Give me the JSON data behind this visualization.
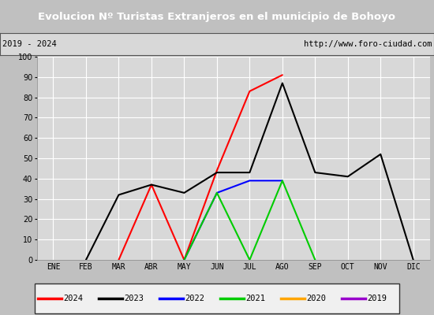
{
  "title": "Evolucion Nº Turistas Extranjeros en el municipio de Bohoyo",
  "subtitle_left": "2019 - 2024",
  "subtitle_right": "http://www.foro-ciudad.com",
  "title_bg_color": "#4f86c6",
  "subtitle_bg_color": "#d8d8d8",
  "months": [
    "ENE",
    "FEB",
    "MAR",
    "ABR",
    "MAY",
    "JUN",
    "JUL",
    "AGO",
    "SEP",
    "OCT",
    "NOV",
    "DIC"
  ],
  "series": {
    "2024": {
      "color": "#ff0000",
      "values": [
        null,
        null,
        0,
        37,
        0,
        44,
        83,
        91,
        null,
        null,
        null,
        null
      ]
    },
    "2023": {
      "color": "#000000",
      "values": [
        null,
        0,
        32,
        37,
        33,
        43,
        43,
        87,
        43,
        41,
        52,
        0
      ]
    },
    "2022": {
      "color": "#0000ff",
      "values": [
        null,
        null,
        null,
        null,
        0,
        33,
        39,
        39,
        null,
        null,
        null,
        null
      ]
    },
    "2021": {
      "color": "#00cc00",
      "values": [
        null,
        null,
        null,
        null,
        0,
        33,
        0,
        39,
        0,
        null,
        null,
        null
      ]
    },
    "2020": {
      "color": "#ffa500",
      "values": [
        null,
        null,
        null,
        null,
        null,
        null,
        null,
        null,
        null,
        null,
        null,
        null
      ]
    },
    "2019": {
      "color": "#9900cc",
      "values": [
        null,
        null,
        null,
        null,
        null,
        null,
        null,
        null,
        null,
        null,
        null,
        null
      ]
    }
  },
  "ylim": [
    0,
    100
  ],
  "yticks": [
    0,
    10,
    20,
    30,
    40,
    50,
    60,
    70,
    80,
    90,
    100
  ],
  "plot_bg_color": "#d8d8d8",
  "grid_color": "#ffffff",
  "legend_order": [
    "2024",
    "2023",
    "2022",
    "2021",
    "2020",
    "2019"
  ]
}
